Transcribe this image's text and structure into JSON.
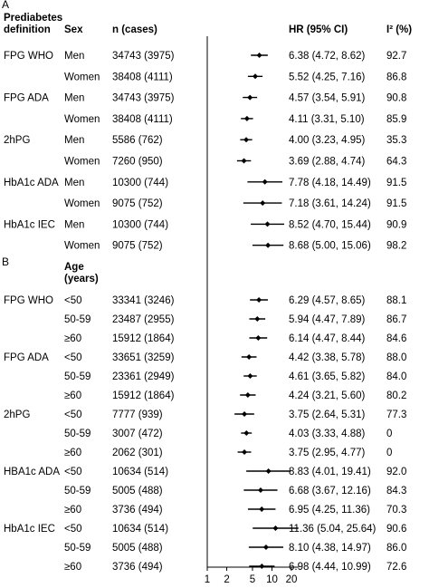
{
  "panel_a": {
    "letter": "A",
    "col_definition": [
      "Prediabetes",
      "definition"
    ],
    "col_sex": "Sex",
    "col_n": "n (cases)",
    "col_hr": "HR (95%  CI)",
    "col_i2": "I² (%)"
  },
  "panel_b": {
    "letter": "B",
    "col_age": [
      "Age",
      "(years)"
    ]
  },
  "chart_data": {
    "type": "forest",
    "x_axis": {
      "scale": "log",
      "ticks": [
        1,
        2,
        5,
        10,
        20
      ],
      "tick_labels": [
        "1",
        "2",
        "5",
        "10",
        "20"
      ],
      "reference_line": 1
    },
    "panels": [
      {
        "name": "A",
        "group_col": "Sex",
        "rows": [
          {
            "definition": "FPG WHO",
            "group": "Men",
            "n": "34743 (3975)",
            "hr": 6.38,
            "lo": 4.72,
            "hi": 8.62,
            "hr_text": "6.38 (4.72, 8.62)",
            "i2": "92.7"
          },
          {
            "definition": "",
            "group": "Women",
            "n": "38408 (4111)",
            "hr": 5.52,
            "lo": 4.25,
            "hi": 7.16,
            "hr_text": "5.52 (4.25, 7.16)",
            "i2": "86.8"
          },
          {
            "definition": "FPG ADA",
            "group": "Men",
            "n": "34743 (3975)",
            "hr": 4.57,
            "lo": 3.54,
            "hi": 5.91,
            "hr_text": "4.57 (3.54, 5.91)",
            "i2": "90.8"
          },
          {
            "definition": "",
            "group": "Women",
            "n": "38408 (4111)",
            "hr": 4.11,
            "lo": 3.31,
            "hi": 5.1,
            "hr_text": "4.11 (3.31, 5.10)",
            "i2": "85.9"
          },
          {
            "definition": "2hPG",
            "group": "Men",
            "n": "5586 (762)",
            "hr": 4.0,
            "lo": 3.23,
            "hi": 4.95,
            "hr_text": "4.00 (3.23, 4.95)",
            "i2": "35.3"
          },
          {
            "definition": "",
            "group": "Women",
            "n": "7260 (950)",
            "hr": 3.69,
            "lo": 2.88,
            "hi": 4.74,
            "hr_text": "3.69 (2.88, 4.74)",
            "i2": "64.3"
          },
          {
            "definition": "HbA1c ADA",
            "group": "Men",
            "n": "10300 (744)",
            "hr": 7.78,
            "lo": 4.18,
            "hi": 14.49,
            "hr_text": "7.78 (4.18, 14.49)",
            "i2": "91.5"
          },
          {
            "definition": "",
            "group": "Women",
            "n": "9075 (752)",
            "hr": 7.18,
            "lo": 3.61,
            "hi": 14.24,
            "hr_text": "7.18 (3.61, 14.24)",
            "i2": "91.5"
          },
          {
            "definition": "HbA1c IEC",
            "group": "Men",
            "n": "10300 (744)",
            "hr": 8.52,
            "lo": 4.7,
            "hi": 15.44,
            "hr_text": "8.52 (4.70, 15.44)",
            "i2": "90.9"
          },
          {
            "definition": "",
            "group": "Women",
            "n": "9075 (752)",
            "hr": 8.68,
            "lo": 5.0,
            "hi": 15.06,
            "hr_text": "8.68 (5.00, 15.06)",
            "i2": "98.2"
          }
        ]
      },
      {
        "name": "B",
        "group_col": "Age (years)",
        "rows": [
          {
            "definition": "FPG WHO",
            "group": "<50",
            "n": "33341 (3246)",
            "hr": 6.29,
            "lo": 4.57,
            "hi": 8.65,
            "hr_text": "6.29 (4.57, 8.65)",
            "i2": "88.1"
          },
          {
            "definition": "",
            "group": "50-59",
            "n": "23487 (2955)",
            "hr": 5.94,
            "lo": 4.47,
            "hi": 7.89,
            "hr_text": "5.94 (4.47, 7.89)",
            "i2": "86.7"
          },
          {
            "definition": "",
            "group": "≥60",
            "n": "15912 (1864)",
            "hr": 6.14,
            "lo": 4.47,
            "hi": 8.44,
            "hr_text": "6.14 (4.47, 8.44)",
            "i2": "84.6"
          },
          {
            "definition": "FPG ADA",
            "group": "<50",
            "n": "33651 (3259)",
            "hr": 4.42,
            "lo": 3.38,
            "hi": 5.78,
            "hr_text": "4.42 (3.38, 5.78)",
            "i2": "88.0"
          },
          {
            "definition": "",
            "group": "50-59",
            "n": "23361 (2949)",
            "hr": 4.61,
            "lo": 3.65,
            "hi": 5.82,
            "hr_text": "4.61 (3.65, 5.82)",
            "i2": "84.0"
          },
          {
            "definition": "",
            "group": "≥60",
            "n": "15912 (1864)",
            "hr": 4.24,
            "lo": 3.21,
            "hi": 5.6,
            "hr_text": "4.24 (3.21, 5.60)",
            "i2": "80.2"
          },
          {
            "definition": "2hPG",
            "group": "<50",
            "n": "7777 (939)",
            "hr": 3.75,
            "lo": 2.64,
            "hi": 5.31,
            "hr_text": "3.75 (2.64, 5.31)",
            "i2": "77.3"
          },
          {
            "definition": "",
            "group": "50-59",
            "n": "3007 (472)",
            "hr": 4.03,
            "lo": 3.33,
            "hi": 4.88,
            "hr_text": "4.03 (3.33, 4.88)",
            "i2": "0"
          },
          {
            "definition": "",
            "group": "≥60",
            "n": "2062 (301)",
            "hr": 3.75,
            "lo": 2.95,
            "hi": 4.77,
            "hr_text": "3.75 (2.95, 4.77)",
            "i2": "0"
          },
          {
            "definition": "HBA1c ADA",
            "group": "<50",
            "n": "10634 (514)",
            "hr": 8.83,
            "lo": 4.01,
            "hi": 19.41,
            "hr_text": "8.83 (4.01, 19.41)",
            "i2": "92.0"
          },
          {
            "definition": "",
            "group": "50-59",
            "n": "5005 (488)",
            "hr": 6.68,
            "lo": 3.67,
            "hi": 12.16,
            "hr_text": "6.68 (3.67, 12.16)",
            "i2": "84.3"
          },
          {
            "definition": "",
            "group": "≥60",
            "n": "3736 (494)",
            "hr": 6.95,
            "lo": 4.25,
            "hi": 11.36,
            "hr_text": "6.95 (4.25, 11.36)",
            "i2": "70.3"
          },
          {
            "definition": "HbA1c IEC",
            "group": "<50",
            "n": "10634 (514)",
            "hr": 11.36,
            "lo": 5.04,
            "hi": 25.64,
            "hr_text": "11.36 (5.04, 25.64)",
            "i2": "90.6"
          },
          {
            "definition": "",
            "group": "50-59",
            "n": "5005 (488)",
            "hr": 8.1,
            "lo": 4.38,
            "hi": 14.97,
            "hr_text": "8.10 (4.38, 14.97)",
            "i2": "86.0"
          },
          {
            "definition": "",
            "group": "≥60",
            "n": "3736 (494)",
            "hr": 6.98,
            "lo": 4.44,
            "hi": 10.99,
            "hr_text": "6.98 (4.44, 10.99)",
            "i2": "72.6"
          }
        ]
      }
    ]
  }
}
